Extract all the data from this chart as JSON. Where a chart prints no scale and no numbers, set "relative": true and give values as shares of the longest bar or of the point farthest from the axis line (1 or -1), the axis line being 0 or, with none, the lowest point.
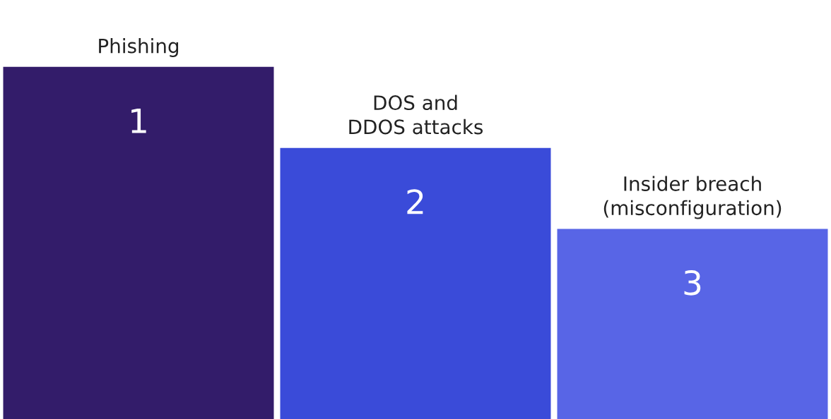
{
  "chart_data": {
    "type": "bar",
    "relative": true,
    "categories": [
      "Phishing",
      "DOS and\nDDOS attacks",
      "Insider breach\n(misconfiguration)"
    ],
    "values": [
      1,
      0.77,
      0.54
    ],
    "colors": [
      "#331c6a",
      "#3a4bd9",
      "#5865e6"
    ],
    "annotations": [
      "1",
      "2",
      "3"
    ]
  }
}
